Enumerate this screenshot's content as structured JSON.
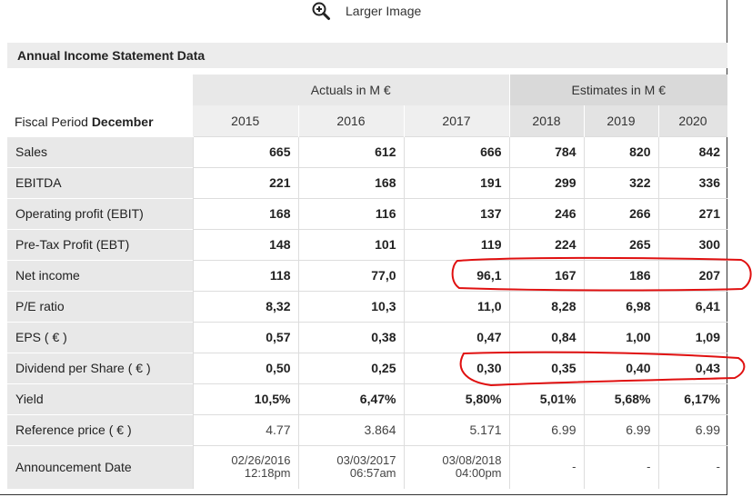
{
  "header": {
    "zoom_label": "Larger Image"
  },
  "section_title": "Annual Income Statement Data",
  "groups": {
    "actuals": "Actuals in M €",
    "estimates": "Estimates in M €"
  },
  "fiscal_period": {
    "prefix": "Fiscal Period ",
    "month": "December"
  },
  "years": [
    "2015",
    "2016",
    "2017",
    "2018",
    "2019",
    "2020"
  ],
  "rows": [
    {
      "label": "Sales",
      "values": [
        "665",
        "612",
        "666",
        "784",
        "820",
        "842"
      ]
    },
    {
      "label": "EBITDA",
      "values": [
        "221",
        "168",
        "191",
        "299",
        "322",
        "336"
      ]
    },
    {
      "label": "Operating profit (EBIT)",
      "values": [
        "168",
        "116",
        "137",
        "246",
        "266",
        "271"
      ]
    },
    {
      "label": "Pre-Tax Profit (EBT)",
      "values": [
        "148",
        "101",
        "119",
        "224",
        "265",
        "300"
      ]
    },
    {
      "label": "Net income",
      "values": [
        "118",
        "77,0",
        "96,1",
        "167",
        "186",
        "207"
      ]
    },
    {
      "label": "P/E ratio",
      "values": [
        "8,32",
        "10,3",
        "11,0",
        "8,28",
        "6,98",
        "6,41"
      ]
    },
    {
      "label": "EPS ( € )",
      "values": [
        "0,57",
        "0,38",
        "0,47",
        "0,84",
        "1,00",
        "1,09"
      ]
    },
    {
      "label": "Dividend per Share ( € )",
      "values": [
        "0,50",
        "0,25",
        "0,30",
        "0,35",
        "0,40",
        "0,43"
      ]
    },
    {
      "label": "Yield",
      "values": [
        "10,5%",
        "6,47%",
        "5,80%",
        "5,01%",
        "5,68%",
        "6,17%"
      ]
    },
    {
      "label": "Reference price ( € )",
      "values": [
        "4.77",
        "3.864",
        "5.171",
        "6.99",
        "6.99",
        "6.99"
      ]
    }
  ],
  "announcement": {
    "label": "Announcement Date",
    "dates": [
      {
        "date": "02/26/2016",
        "time": "12:18pm"
      },
      {
        "date": "03/03/2017",
        "time": "06:57am"
      },
      {
        "date": "03/08/2018",
        "time": "04:00pm"
      },
      {
        "date": "-",
        "time": ""
      },
      {
        "date": "-",
        "time": ""
      },
      {
        "date": "-",
        "time": ""
      }
    ]
  },
  "colors": {
    "annotation": "#e01010",
    "header_bg": "#ececec"
  }
}
